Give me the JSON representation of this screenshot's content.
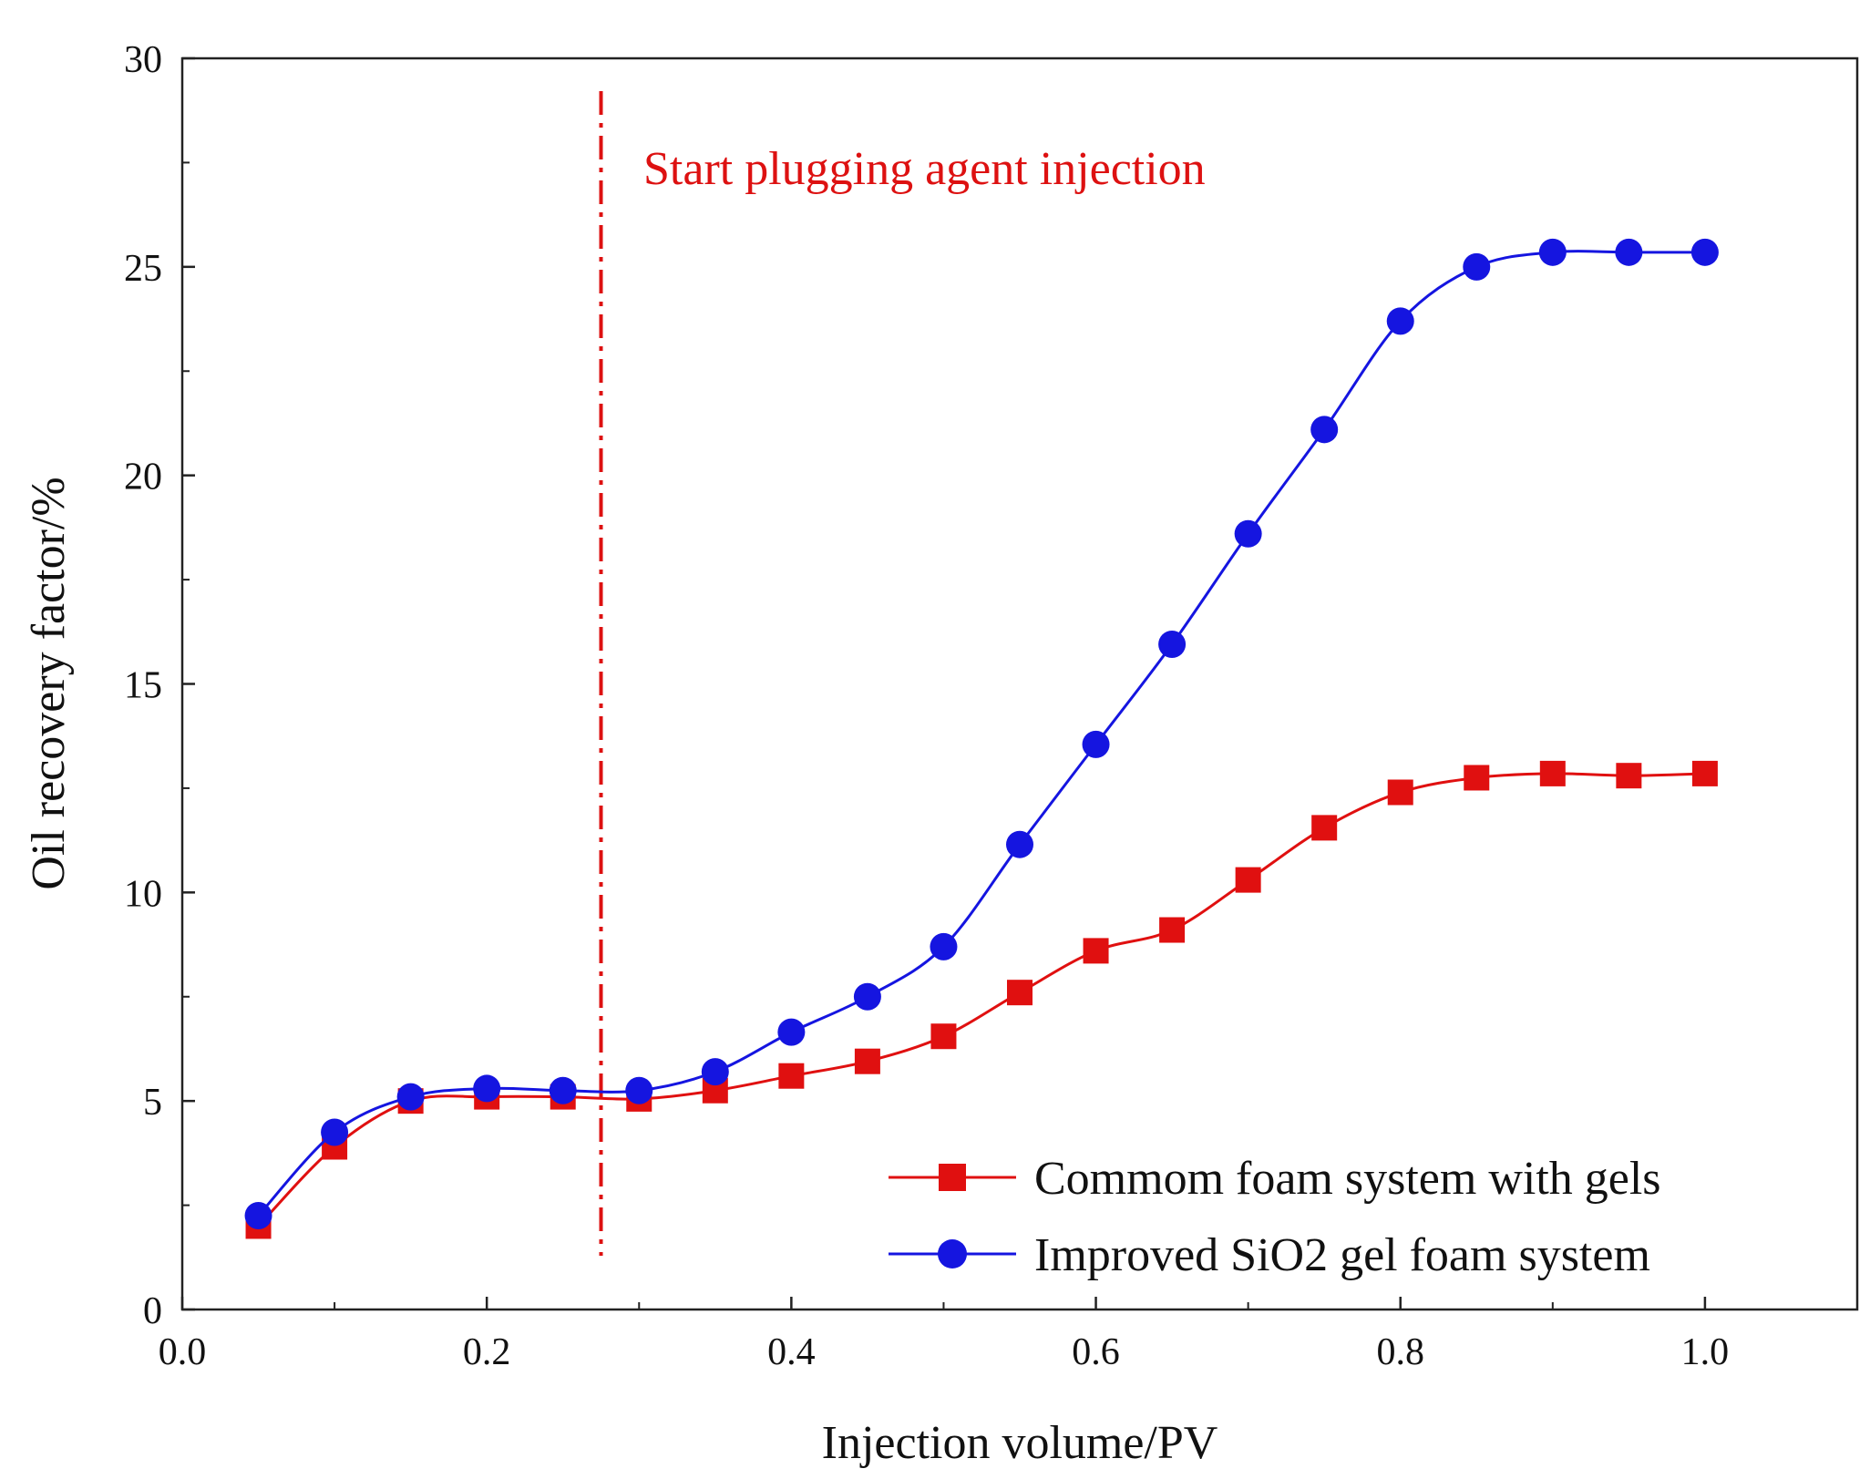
{
  "chart_data": {
    "type": "line",
    "title": "",
    "xlabel": "Injection volume/PV",
    "ylabel": "Oil recovery factor/%",
    "xlim": [
      0.0,
      1.1
    ],
    "ylim": [
      0,
      30
    ],
    "xticks": [
      0.0,
      0.2,
      0.4,
      0.6,
      0.8,
      1.0
    ],
    "xtick_labels": [
      "0.0",
      "0.2",
      "0.4",
      "0.6",
      "0.8",
      "1.0"
    ],
    "yticks": [
      0,
      5,
      10,
      15,
      20,
      25,
      30
    ],
    "ytick_labels": [
      "0",
      "5",
      "10",
      "15",
      "20",
      "25",
      "30"
    ],
    "grid": false,
    "legend_position": "bottom-right",
    "annotation": {
      "text": "Start plugging agent injection",
      "x": 0.275,
      "color": "#dd1111"
    },
    "series": [
      {
        "name": "Commom foam system with gels",
        "color": "#e01010",
        "marker": "square",
        "x": [
          0.05,
          0.1,
          0.15,
          0.2,
          0.25,
          0.3,
          0.35,
          0.4,
          0.45,
          0.5,
          0.55,
          0.6,
          0.65,
          0.7,
          0.75,
          0.8,
          0.85,
          0.9,
          0.95,
          1.0
        ],
        "values": [
          2.0,
          3.9,
          5.0,
          5.1,
          5.1,
          5.05,
          5.25,
          5.6,
          5.95,
          6.55,
          7.6,
          8.6,
          9.1,
          10.3,
          11.55,
          12.4,
          12.75,
          12.85,
          12.8,
          12.85
        ]
      },
      {
        "name": "Improved SiO2 gel foam system",
        "color": "#1515e0",
        "marker": "circle",
        "x": [
          0.05,
          0.1,
          0.15,
          0.2,
          0.25,
          0.3,
          0.35,
          0.4,
          0.45,
          0.5,
          0.55,
          0.6,
          0.65,
          0.7,
          0.75,
          0.8,
          0.85,
          0.9,
          0.95,
          1.0
        ],
        "values": [
          2.25,
          4.25,
          5.1,
          5.3,
          5.25,
          5.25,
          5.7,
          6.65,
          7.5,
          8.7,
          11.15,
          13.55,
          15.95,
          18.6,
          21.1,
          23.7,
          25.0,
          25.35,
          25.35,
          25.35
        ]
      }
    ]
  }
}
